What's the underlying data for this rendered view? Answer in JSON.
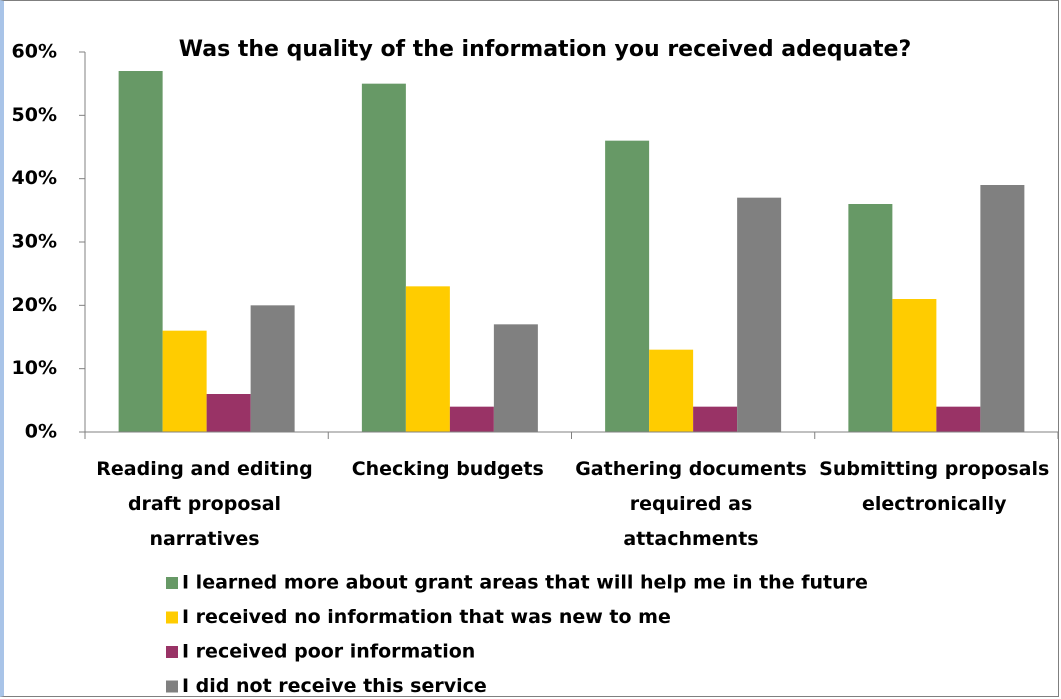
{
  "chart_data": {
    "type": "bar",
    "title": "Was the quality of the information you received adequate?",
    "categories": [
      "Reading and editing draft proposal narratives",
      "Checking budgets",
      "Gathering documents required as attachments",
      "Submitting proposals electronically"
    ],
    "series": [
      {
        "name": "I learned more about grant areas that will help me in the future",
        "color": "#679966",
        "values": [
          57,
          55,
          46,
          36
        ]
      },
      {
        "name": "I received no information that was new to me",
        "color": "#ffcc00",
        "values": [
          16,
          23,
          13,
          21
        ]
      },
      {
        "name": "I received poor information",
        "color": "#993366",
        "values": [
          6,
          4,
          4,
          4
        ]
      },
      {
        "name": "I did not receive this service",
        "color": "#808080",
        "values": [
          20,
          17,
          37,
          39
        ]
      }
    ],
    "ylim": [
      0,
      60
    ],
    "yticks": [
      {
        "value": 0,
        "label": "0%"
      },
      {
        "value": 10,
        "label": "10%"
      },
      {
        "value": 20,
        "label": "20%"
      },
      {
        "value": 30,
        "label": "30%"
      },
      {
        "value": 40,
        "label": "40%"
      },
      {
        "value": 50,
        "label": "50%"
      },
      {
        "value": 60,
        "label": "60%"
      }
    ],
    "grid": false,
    "legend": "bottom"
  }
}
